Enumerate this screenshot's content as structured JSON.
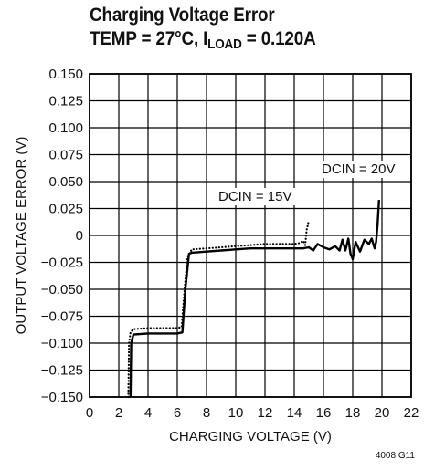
{
  "figure_id": "4008 G11",
  "chart_data": {
    "type": "line",
    "title": "Charging Voltage Error",
    "subtitle_parts": {
      "prefix": "TEMP = 27°C, I",
      "subscript": "LOAD",
      "suffix": " = 0.120A"
    },
    "xlabel": "CHARGING VOLTAGE (V)",
    "ylabel": "OUTPUT VOLTAGE ERROR (V)",
    "xlim": [
      0,
      22
    ],
    "ylim": [
      -0.15,
      0.15
    ],
    "grid": true,
    "x_ticks": [
      "0",
      "2",
      "4",
      "6",
      "8",
      "10",
      "12",
      "14",
      "16",
      "18",
      "20",
      "22"
    ],
    "y_ticks": [
      "0.150",
      "0.125",
      "0.100",
      "0.075",
      "0.050",
      "0.025",
      "0",
      "−0.025",
      "−0.050",
      "−0.075",
      "−0.100",
      "−0.125",
      "−0.150"
    ],
    "annotations": [
      {
        "text": "DCIN = 15V",
        "series": "DCIN = 15V"
      },
      {
        "text": "DCIN = 20V",
        "series": "DCIN = 20V"
      }
    ],
    "series": [
      {
        "name": "DCIN = 15V",
        "style": "dotted",
        "points": [
          [
            2.65,
            -0.15
          ],
          [
            2.7,
            -0.1
          ],
          [
            2.8,
            -0.09
          ],
          [
            3.0,
            -0.087
          ],
          [
            4.0,
            -0.086
          ],
          [
            5.0,
            -0.086
          ],
          [
            6.0,
            -0.086
          ],
          [
            6.3,
            -0.085
          ],
          [
            6.5,
            -0.05
          ],
          [
            6.7,
            -0.02
          ],
          [
            7.0,
            -0.013
          ],
          [
            8.0,
            -0.012
          ],
          [
            9.0,
            -0.011
          ],
          [
            10.0,
            -0.01
          ],
          [
            11.0,
            -0.009
          ],
          [
            12.0,
            -0.008
          ],
          [
            13.0,
            -0.008
          ],
          [
            14.0,
            -0.008
          ],
          [
            14.4,
            -0.007
          ],
          [
            14.6,
            -0.005
          ],
          [
            14.75,
            -0.009
          ],
          [
            14.85,
            0.005
          ],
          [
            15.0,
            0.014
          ]
        ]
      },
      {
        "name": "DCIN = 20V",
        "style": "solid",
        "points": [
          [
            2.8,
            -0.15
          ],
          [
            2.85,
            -0.1
          ],
          [
            3.0,
            -0.092
          ],
          [
            4.0,
            -0.091
          ],
          [
            5.0,
            -0.091
          ],
          [
            6.0,
            -0.091
          ],
          [
            6.35,
            -0.09
          ],
          [
            6.55,
            -0.05
          ],
          [
            6.8,
            -0.017
          ],
          [
            7.0,
            -0.016
          ],
          [
            8.0,
            -0.015
          ],
          [
            9.0,
            -0.014
          ],
          [
            10.0,
            -0.013
          ],
          [
            11.0,
            -0.012
          ],
          [
            12.0,
            -0.012
          ],
          [
            13.0,
            -0.012
          ],
          [
            14.0,
            -0.012
          ],
          [
            14.6,
            -0.012
          ],
          [
            15.0,
            -0.011
          ],
          [
            15.3,
            -0.014
          ],
          [
            15.6,
            -0.008
          ],
          [
            16.0,
            -0.011
          ],
          [
            16.4,
            -0.013
          ],
          [
            16.8,
            -0.01
          ],
          [
            17.1,
            -0.014
          ],
          [
            17.3,
            -0.004
          ],
          [
            17.5,
            -0.014
          ],
          [
            17.7,
            -0.003
          ],
          [
            17.85,
            -0.017
          ],
          [
            18.0,
            -0.022
          ],
          [
            18.2,
            -0.006
          ],
          [
            18.5,
            -0.015
          ],
          [
            18.8,
            -0.004
          ],
          [
            19.1,
            -0.008
          ],
          [
            19.3,
            -0.003
          ],
          [
            19.5,
            -0.012
          ],
          [
            19.6,
            -0.006
          ],
          [
            19.7,
            0.01
          ],
          [
            19.8,
            0.033
          ]
        ]
      }
    ]
  }
}
